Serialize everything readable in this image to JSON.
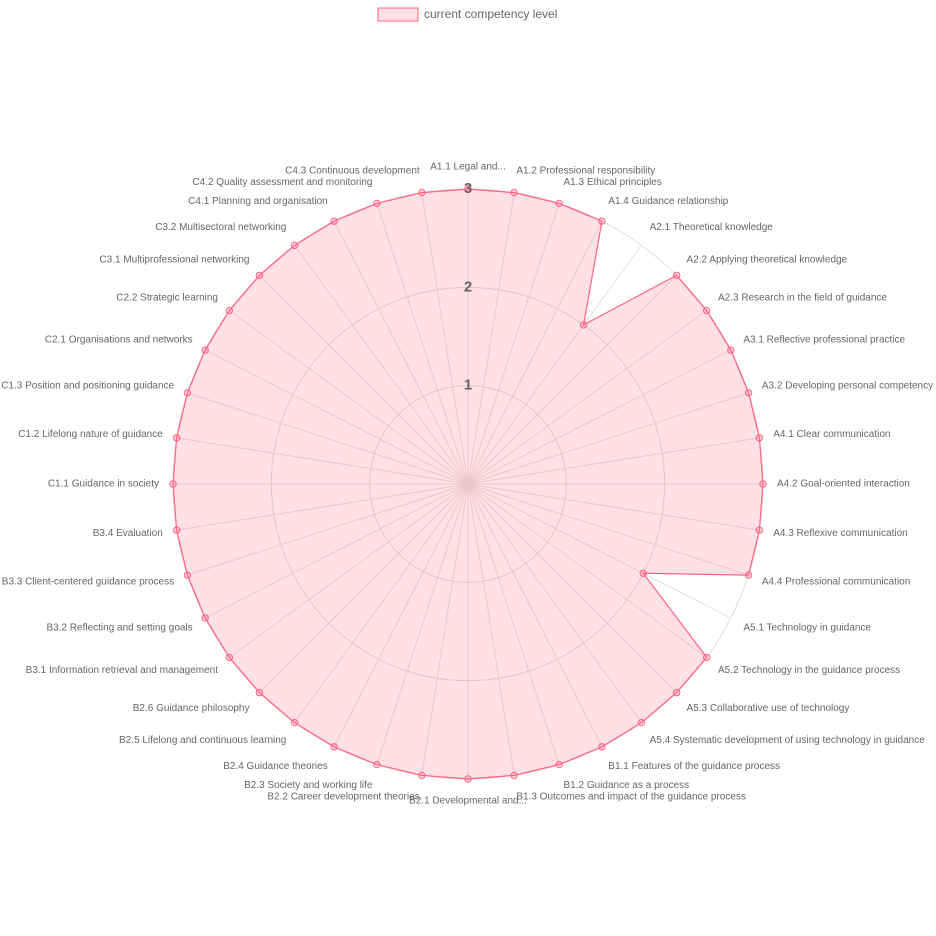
{
  "chart_data": {
    "type": "radar",
    "categories": [
      "A1.1 Legal and...",
      "A1.2 Professional responsibility",
      "A1.3 Ethical principles",
      "A1.4 Guidance relationship",
      "A2.1 Theoretical knowledge",
      "A2.2 Applying theoretical knowledge",
      "A2.3 Research in the field of guidance",
      "A3.1 Reflective professional practice",
      "A3.2 Developing personal competency",
      "A4.1 Clear communication",
      "A4.2 Goal-oriented interaction",
      "A4.3 Reflexive communication",
      "A4.4 Professional communication",
      "A5.1 Technology in guidance",
      "A5.2 Technology in the guidance process",
      "A5.3 Collaborative use of technology",
      "A5.4 Systematic development of using technology in guidance",
      "B1.1 Features of the guidance process",
      "B1.2 Guidance as a process",
      "B1.3 Outcomes and impact of the guidance process",
      "B2.1 Developmental and...",
      "B2.2 Career development theories",
      "B2.3 Society and working life",
      "B2.4 Guidance theories",
      "B2.5 Lifelong and continuous learning",
      "B2.6 Guidance philosophy",
      "B3.1 Information retrieval and management",
      "B3.2 Reflecting and setting goals",
      "B3.3 Client-centered guidance process",
      "B3.4 Evaluation",
      "C1.1 Guidance in society",
      "C1.2 Lifelong nature of guidance",
      "C1.3 Position and positioning guidance",
      "C2.1 Organisations and networks",
      "C2.2 Strategic learning",
      "C3.1 Multiprofessional networking",
      "C3.2 Multisectoral networking",
      "C4.1 Planning and organisation",
      "C4.2 Quality assessment and monitoring",
      "C4.3 Continuous development"
    ],
    "series": [
      {
        "name": "current competency level",
        "color": "#ff6384",
        "values": [
          3,
          3,
          3,
          3,
          2,
          3,
          3,
          3,
          3,
          3,
          3,
          3,
          3,
          2,
          3,
          3,
          3,
          3,
          3,
          3,
          3,
          3,
          3,
          3,
          3,
          3,
          3,
          3,
          3,
          3,
          3,
          3,
          3,
          3,
          3,
          3,
          3,
          3,
          3,
          3
        ]
      }
    ],
    "ylim": [
      0,
      3
    ],
    "yticks": [
      1,
      2,
      3
    ],
    "grid": true,
    "legend": "top"
  }
}
